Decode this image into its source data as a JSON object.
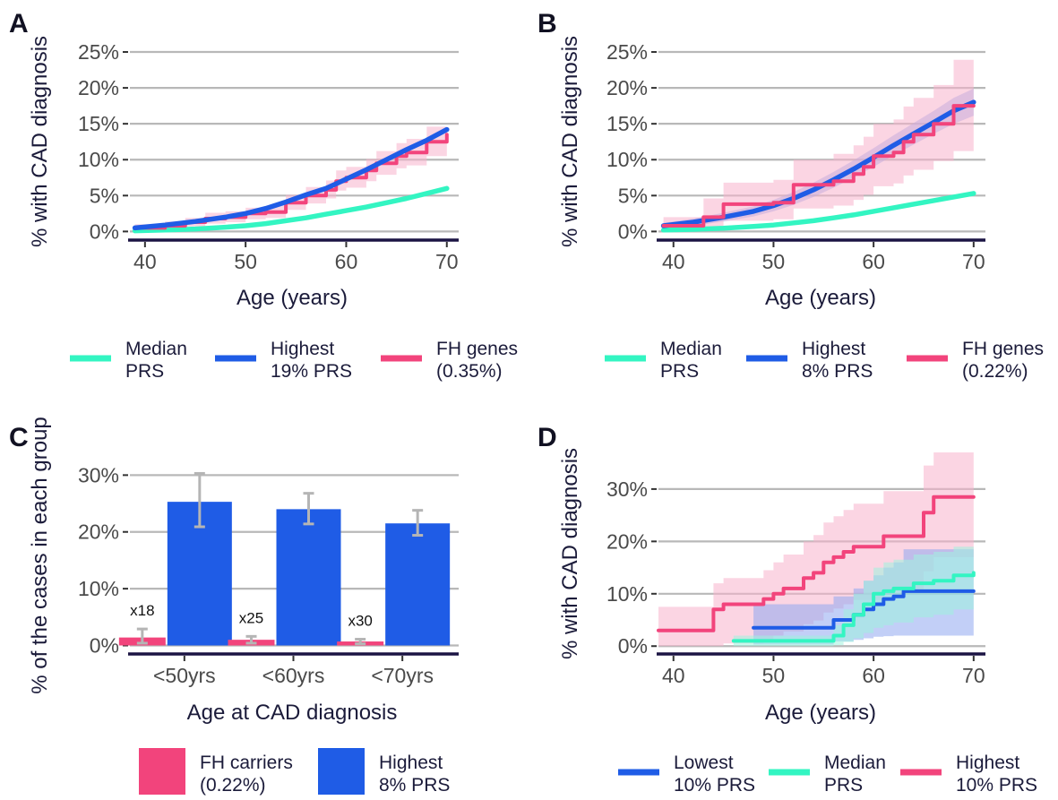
{
  "colors": {
    "median": "#33f5c2",
    "highest": "#1f5ce6",
    "fh": "#f2447c",
    "fh_band": "#f7b3cc",
    "highest_band": "#8fa8f0",
    "median_band": "#9ff2de",
    "grid": "#b8b8b8",
    "axis": "#1b1443",
    "error": "#b5b5b5"
  },
  "chart_data": [
    {
      "panel": "A",
      "type": "line",
      "xlabel": "Age (years)",
      "ylabel": "% with CAD diagnosis",
      "xlim": [
        38.5,
        71
      ],
      "ylim": [
        -1.2,
        26
      ],
      "xticks": [
        40,
        50,
        60,
        70
      ],
      "yticks": [
        0,
        5,
        10,
        15,
        20,
        25
      ],
      "ytick_labels": [
        "0%",
        "5%",
        "10%",
        "15%",
        "20%",
        "25%"
      ],
      "grid": true,
      "legend_position": "bottom",
      "series": [
        {
          "name": "Median PRS",
          "legend_lines": [
            "Median",
            "PRS"
          ],
          "color_key": "median",
          "step": false,
          "x": [
            39,
            42,
            45,
            48,
            50,
            52,
            54,
            56,
            58,
            60,
            62,
            64,
            66,
            68,
            70
          ],
          "y": [
            0.1,
            0.2,
            0.35,
            0.6,
            0.8,
            1.1,
            1.5,
            1.9,
            2.4,
            2.9,
            3.4,
            4.0,
            4.6,
            5.3,
            6.0
          ]
        },
        {
          "name": "FH genes (0.35%)",
          "legend_lines": [
            "FH genes",
            "(0.35%)"
          ],
          "color_key": "fh",
          "step": true,
          "band_key": "fh_band",
          "x": [
            39,
            42,
            44,
            46,
            48,
            50,
            52,
            54,
            56,
            58,
            59,
            60,
            62,
            63,
            65,
            66,
            68,
            70
          ],
          "y": [
            0.5,
            0.8,
            1.3,
            1.8,
            2.0,
            2.5,
            2.7,
            4.0,
            5.0,
            5.8,
            7.0,
            7.5,
            8.5,
            9.5,
            10.5,
            11.0,
            12.5,
            13.5
          ],
          "band_lower": [
            0.1,
            0.3,
            0.7,
            1.1,
            1.3,
            1.7,
            1.9,
            3.0,
            3.9,
            4.6,
            5.7,
            6.1,
            7.0,
            7.9,
            8.8,
            9.2,
            10.5,
            11.4
          ],
          "band_upper": [
            1.0,
            1.4,
            1.9,
            2.6,
            2.8,
            3.3,
            3.6,
            5.1,
            6.2,
            7.1,
            8.5,
            9.0,
            10.1,
            11.2,
            12.3,
            12.9,
            14.6,
            15.7
          ]
        },
        {
          "name": "Highest 19% PRS",
          "legend_lines": [
            "Highest",
            "19% PRS"
          ],
          "color_key": "highest",
          "step": false,
          "x": [
            39,
            42,
            45,
            48,
            50,
            52,
            54,
            56,
            58,
            60,
            62,
            64,
            66,
            68,
            70
          ],
          "y": [
            0.5,
            0.9,
            1.4,
            2.0,
            2.5,
            3.2,
            4.1,
            5.1,
            6.0,
            7.3,
            8.6,
            10.0,
            11.4,
            12.7,
            14.2
          ]
        }
      ]
    },
    {
      "panel": "B",
      "type": "line",
      "xlabel": "Age (years)",
      "ylabel": "% with CAD diagnosis",
      "xlim": [
        38.5,
        71
      ],
      "ylim": [
        -1.2,
        26
      ],
      "xticks": [
        40,
        50,
        60,
        70
      ],
      "yticks": [
        0,
        5,
        10,
        15,
        20,
        25
      ],
      "ytick_labels": [
        "0%",
        "5%",
        "10%",
        "15%",
        "20%",
        "25%"
      ],
      "grid": true,
      "legend_position": "bottom",
      "series": [
        {
          "name": "Median PRS",
          "legend_lines": [
            "Median",
            "PRS"
          ],
          "color_key": "median",
          "step": false,
          "x": [
            39,
            42,
            45,
            48,
            50,
            52,
            54,
            56,
            58,
            60,
            62,
            64,
            66,
            68,
            70
          ],
          "y": [
            0.2,
            0.3,
            0.45,
            0.7,
            0.9,
            1.2,
            1.5,
            1.9,
            2.3,
            2.8,
            3.3,
            3.8,
            4.3,
            4.8,
            5.3
          ]
        },
        {
          "name": "Highest 8% PRS",
          "legend_lines": [
            "Highest",
            "8% PRS"
          ],
          "color_key": "highest",
          "step": false,
          "band_key": "highest_band",
          "x": [
            39,
            42,
            45,
            48,
            50,
            52,
            54,
            56,
            58,
            60,
            62,
            64,
            66,
            68,
            70
          ],
          "y": [
            0.8,
            1.3,
            2.0,
            2.8,
            3.6,
            4.6,
            5.8,
            7.2,
            8.7,
            10.3,
            12.0,
            13.6,
            15.2,
            16.8,
            18.0
          ],
          "band_lower": [
            0.4,
            0.8,
            1.4,
            2.1,
            2.8,
            3.7,
            4.8,
            6.1,
            7.5,
            9.0,
            10.6,
            12.1,
            13.6,
            15.0,
            16.1
          ],
          "band_upper": [
            1.2,
            1.8,
            2.6,
            3.5,
            4.4,
            5.5,
            6.8,
            8.3,
            9.9,
            11.6,
            13.4,
            15.1,
            16.8,
            18.6,
            19.9
          ]
        },
        {
          "name": "FH genes (0.22%)",
          "legend_lines": [
            "FH genes",
            "(0.22%)"
          ],
          "color_key": "fh",
          "step": true,
          "band_key": "fh_band",
          "x": [
            39,
            43,
            45,
            48,
            50,
            52,
            54,
            56,
            58,
            59,
            60,
            62,
            63,
            64,
            66,
            68,
            70
          ],
          "y": [
            0.8,
            2.0,
            3.8,
            3.8,
            4.0,
            6.5,
            6.5,
            7.0,
            8.0,
            9.0,
            10.5,
            11.0,
            12.5,
            13.5,
            15.0,
            17.5,
            17.5
          ],
          "band_lower": [
            0,
            0.3,
            1.5,
            1.5,
            1.7,
            3.2,
            3.2,
            3.6,
            4.4,
            5.1,
            6.3,
            6.7,
            7.8,
            8.6,
            9.8,
            11.2,
            11.2
          ],
          "band_upper": [
            2.0,
            4.6,
            6.8,
            6.8,
            7.2,
            10.0,
            10.0,
            10.8,
            12.0,
            13.2,
            15.0,
            15.6,
            17.4,
            18.6,
            20.4,
            23.9,
            23.9
          ]
        }
      ]
    },
    {
      "panel": "C",
      "type": "bar",
      "xlabel": "Age at CAD diagnosis",
      "ylabel": "% of the cases in each group",
      "categories": [
        "<50yrs",
        "<60yrs",
        "<70yrs"
      ],
      "ylim": [
        -1.5,
        34
      ],
      "yticks": [
        0,
        10,
        20,
        30
      ],
      "ytick_labels": [
        "0%",
        "10%",
        "20%",
        "30%"
      ],
      "grid": true,
      "legend_position": "bottom",
      "series": [
        {
          "name": "FH carriers (0.22%)",
          "legend_lines": [
            "FH carriers",
            "(0.22%)"
          ],
          "color_key": "fh",
          "values": [
            1.4,
            1.0,
            0.7
          ],
          "err_low": [
            0.4,
            0.4,
            0.3
          ],
          "err_high": [
            2.9,
            1.6,
            1.1
          ]
        },
        {
          "name": "Highest 8% PRS",
          "legend_lines": [
            "Highest",
            "8% PRS"
          ],
          "color_key": "highest",
          "values": [
            25.3,
            24.0,
            21.5
          ],
          "err_low": [
            20.9,
            21.4,
            19.4
          ],
          "err_high": [
            30.3,
            26.8,
            23.8
          ]
        }
      ],
      "annotations": [
        "x18",
        "x25",
        "x30"
      ]
    },
    {
      "panel": "D",
      "type": "line",
      "xlabel": "Age (years)",
      "ylabel": "% with CAD diagnosis",
      "xlim": [
        38.5,
        71
      ],
      "ylim": [
        -1.5,
        37
      ],
      "xticks": [
        40,
        50,
        60,
        70
      ],
      "yticks": [
        0,
        10,
        20,
        30
      ],
      "ytick_labels": [
        "0%",
        "10%",
        "20%",
        "30%"
      ],
      "grid": true,
      "legend_position": "bottom",
      "series": [
        {
          "name": "Highest 10% PRS",
          "legend_lines": [
            "Highest",
            "10% PRS"
          ],
          "color_key": "fh",
          "step": true,
          "band_key": "fh_band",
          "x": [
            38.5,
            44,
            45,
            48,
            49,
            50,
            51,
            52,
            53,
            54,
            55,
            56,
            57,
            58,
            59,
            61,
            63,
            65,
            66,
            70
          ],
          "y": [
            3.0,
            7.0,
            8.0,
            8.0,
            9.0,
            10.0,
            11.0,
            11.0,
            13.0,
            14.0,
            16.0,
            17.0,
            18.0,
            19.0,
            19.0,
            21.0,
            21.0,
            25.5,
            28.5,
            28.5
          ],
          "band_lower": [
            0,
            0,
            0.5,
            0.5,
            1.2,
            2.0,
            2.8,
            2.8,
            4.2,
            4.9,
            6.4,
            7.2,
            8.0,
            8.8,
            8.8,
            10.5,
            10.5,
            14.3,
            17.0,
            17.0
          ],
          "band_upper": [
            7.5,
            12.0,
            13.0,
            13.0,
            14.5,
            16.0,
            17.5,
            17.5,
            20.0,
            21.2,
            23.6,
            24.8,
            26.0,
            27.2,
            27.2,
            29.6,
            29.6,
            34.5,
            37.0,
            37.0
          ]
        },
        {
          "name": "Lowest 10% PRS",
          "legend_lines": [
            "Lowest",
            "10% PRS"
          ],
          "color_key": "highest",
          "step": true,
          "band_key": "highest_band",
          "x": [
            48,
            55,
            56,
            58,
            59,
            60,
            61,
            62,
            63,
            70
          ],
          "y": [
            3.5,
            3.5,
            5.0,
            6.0,
            7.0,
            8.0,
            9.0,
            9.5,
            10.5,
            10.5
          ],
          "band_lower": [
            0.3,
            0.3,
            0.9,
            1.2,
            1.5,
            1.8,
            1.9,
            2.0,
            2.0,
            2.0
          ],
          "band_upper": [
            8.0,
            8.0,
            9.5,
            11.0,
            12.5,
            13.5,
            15.0,
            16.0,
            18.5,
            18.5
          ]
        },
        {
          "name": "Median PRS",
          "legend_lines": [
            "Median",
            "PRS"
          ],
          "color_key": "median",
          "step": true,
          "band_key": "median_band",
          "x": [
            46,
            55,
            56,
            57,
            58,
            59,
            60,
            61,
            62,
            64,
            66,
            68,
            70
          ],
          "y": [
            1.0,
            1.0,
            2.0,
            4.0,
            6.0,
            8.0,
            10.0,
            10.5,
            11.0,
            12.0,
            12.5,
            13.5,
            14.0
          ],
          "band_lower": [
            0,
            0,
            0.2,
            0.8,
            1.5,
            2.5,
            3.5,
            4.0,
            4.5,
            5.5,
            6.0,
            7.0,
            7.5
          ],
          "band_upper": [
            2.0,
            2.0,
            4.0,
            7.0,
            10.0,
            12.5,
            15.0,
            16.0,
            16.5,
            17.5,
            18.0,
            19.0,
            19.5
          ]
        }
      ],
      "legend_order": [
        "Lowest 10% PRS",
        "Median PRS",
        "Highest 10% PRS"
      ]
    }
  ]
}
